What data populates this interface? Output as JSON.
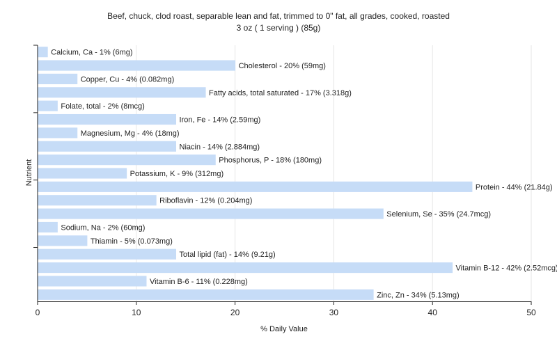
{
  "chart_data": {
    "type": "bar",
    "orientation": "horizontal",
    "title": "Beef, chuck, clod roast, separable lean and fat, trimmed to 0\" fat, all grades, cooked, roasted",
    "subtitle": "3 oz ( 1 serving ) (85g)",
    "xlabel": "% Daily Value",
    "ylabel": "Nutrient",
    "xlim": [
      0,
      50
    ],
    "xticks": [
      0,
      10,
      20,
      30,
      40,
      50
    ],
    "grid": true,
    "bar_color": "#c6dcf7",
    "categories": [
      "Calcium, Ca",
      "Cholesterol",
      "Copper, Cu",
      "Fatty acids, total saturated",
      "Folate, total",
      "Iron, Fe",
      "Magnesium, Mg",
      "Niacin",
      "Phosphorus, P",
      "Potassium, K",
      "Protein",
      "Riboflavin",
      "Selenium, Se",
      "Sodium, Na",
      "Thiamin",
      "Total lipid (fat)",
      "Vitamin B-12",
      "Vitamin B-6",
      "Zinc, Zn"
    ],
    "values": [
      1,
      20,
      4,
      17,
      2,
      14,
      4,
      14,
      18,
      9,
      44,
      12,
      35,
      2,
      5,
      14,
      42,
      11,
      34
    ],
    "data_labels": [
      "Calcium, Ca - 1% (6mg)",
      "Cholesterol - 20% (59mg)",
      "Copper, Cu - 4% (0.082mg)",
      "Fatty acids, total saturated - 17% (3.318g)",
      "Folate, total - 2% (8mcg)",
      "Iron, Fe - 14% (2.59mg)",
      "Magnesium, Mg - 4% (18mg)",
      "Niacin - 14% (2.884mg)",
      "Phosphorus, P - 18% (180mg)",
      "Potassium, K - 9% (312mg)",
      "Protein - 44% (21.84g)",
      "Riboflavin - 12% (0.204mg)",
      "Selenium, Se - 35% (24.7mcg)",
      "Sodium, Na - 2% (60mg)",
      "Thiamin - 5% (0.073mg)",
      "Total lipid (fat) - 14% (9.21g)",
      "Vitamin B-12 - 42% (2.52mcg)",
      "Vitamin B-6 - 11% (0.228mg)",
      "Zinc, Zn - 34% (5.13mg)"
    ]
  }
}
